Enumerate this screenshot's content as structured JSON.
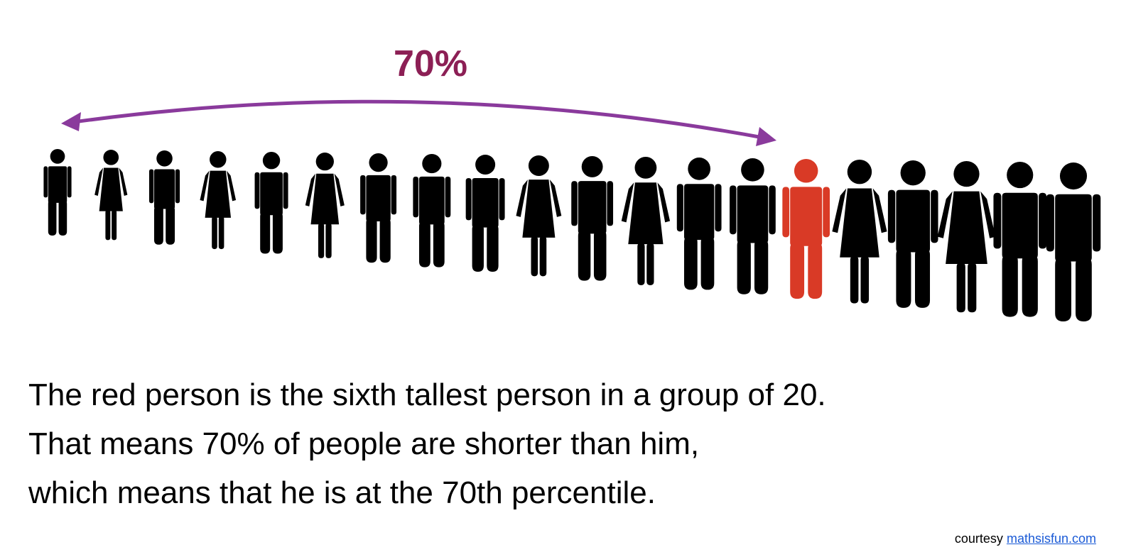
{
  "percent_label": "70%",
  "caption": [
    "The red person is the sixth tallest person in a group of 20.",
    "That means 70% of people are shorter than him,",
    "which means that he is at the 70th percentile."
  ],
  "credit": {
    "prefix": "courtesy",
    "link": "mathsisfun.com"
  },
  "people": [
    {
      "gender": "man",
      "highlight": false
    },
    {
      "gender": "woman",
      "highlight": false
    },
    {
      "gender": "man",
      "highlight": false
    },
    {
      "gender": "woman",
      "highlight": false
    },
    {
      "gender": "man",
      "highlight": false
    },
    {
      "gender": "woman",
      "highlight": false
    },
    {
      "gender": "man",
      "highlight": false
    },
    {
      "gender": "man",
      "highlight": false
    },
    {
      "gender": "man",
      "highlight": false
    },
    {
      "gender": "woman",
      "highlight": false
    },
    {
      "gender": "man",
      "highlight": false
    },
    {
      "gender": "woman",
      "highlight": false
    },
    {
      "gender": "man",
      "highlight": false
    },
    {
      "gender": "man",
      "highlight": false
    },
    {
      "gender": "man",
      "highlight": true
    },
    {
      "gender": "woman",
      "highlight": false
    },
    {
      "gender": "man",
      "highlight": false
    },
    {
      "gender": "woman",
      "highlight": false
    },
    {
      "gender": "man",
      "highlight": false
    },
    {
      "gender": "man",
      "highlight": false
    }
  ],
  "colors": {
    "person": "#000000",
    "highlight": "#d93a26",
    "arrow": "#8a3a9c",
    "label": "#8c1f55"
  }
}
